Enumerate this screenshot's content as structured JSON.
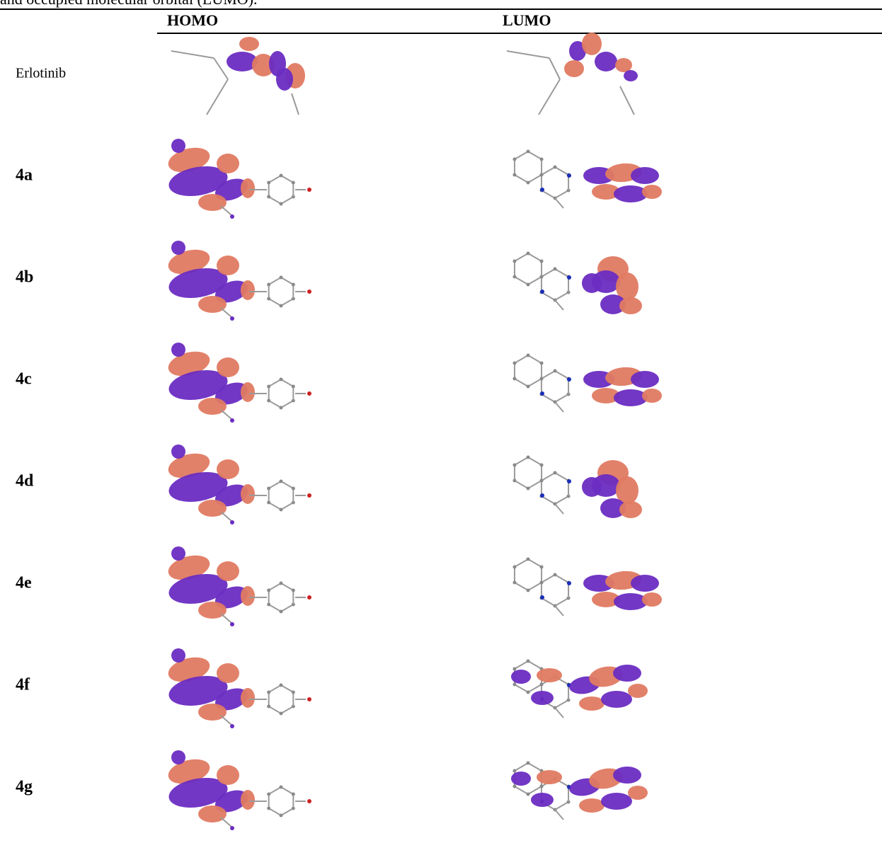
{
  "caption": "and occupied molecular orbital (LUMO).",
  "headers": {
    "homo": "HOMO",
    "lumo": "LUMO"
  },
  "rows": [
    {
      "label": "Erlotinib",
      "bold": false,
      "homo_kind": "erlotinib-homo",
      "lumo_kind": "erlotinib-lumo"
    },
    {
      "label": "4a",
      "bold": true,
      "homo_kind": "quinazolinone-homo",
      "lumo_kind": "aryl-lumo"
    },
    {
      "label": "4b",
      "bold": true,
      "homo_kind": "quinazolinone-homo",
      "lumo_kind": "aryl-lumo-twisted"
    },
    {
      "label": "4c",
      "bold": true,
      "homo_kind": "quinazolinone-homo",
      "lumo_kind": "aryl-lumo"
    },
    {
      "label": "4d",
      "bold": true,
      "homo_kind": "quinazolinone-homo",
      "lumo_kind": "aryl-lumo-twisted"
    },
    {
      "label": "4e",
      "bold": true,
      "homo_kind": "quinazolinone-homo",
      "lumo_kind": "aryl-lumo"
    },
    {
      "label": "4f",
      "bold": true,
      "homo_kind": "quinazolinone-homo",
      "lumo_kind": "delocalized-lumo"
    },
    {
      "label": "4g",
      "bold": true,
      "homo_kind": "quinazolinone-homo",
      "lumo_kind": "delocalized-lumo"
    }
  ],
  "colors": {
    "lobe_positive": "#e07a62",
    "lobe_negative": "#6a2cc2",
    "bond": "#9a9a9a",
    "nitrogen": "#1a2fb8",
    "oxygen": "#cc2222",
    "halogen": "#7fd12b"
  }
}
